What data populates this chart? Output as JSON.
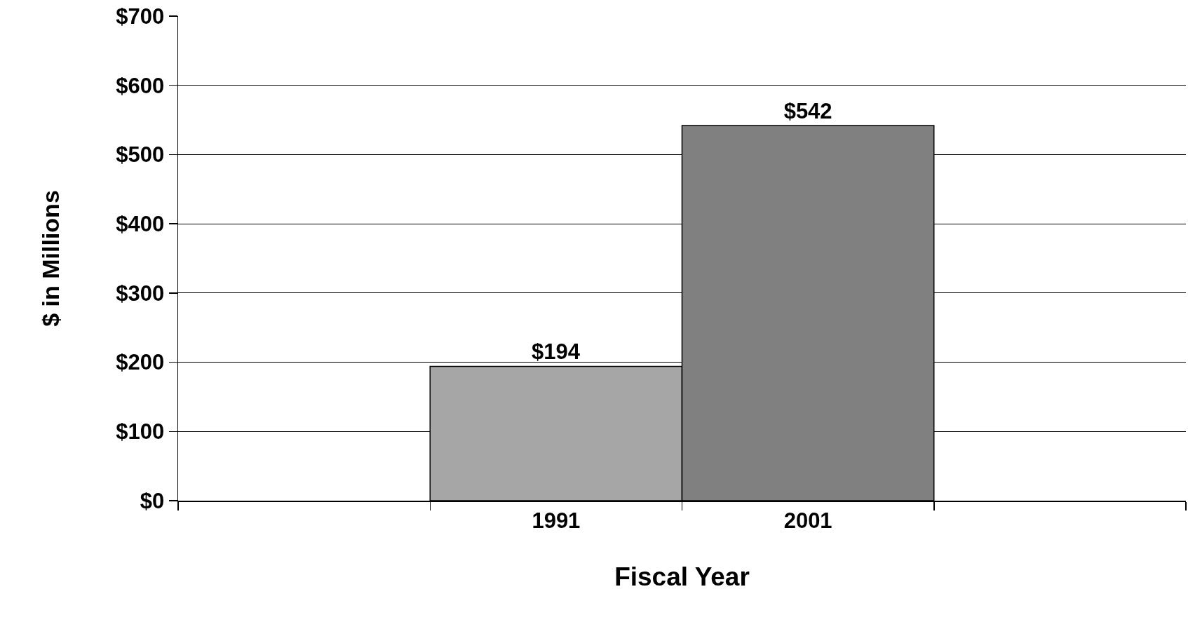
{
  "chart_data": {
    "type": "bar",
    "xlabel": "Fiscal Year",
    "ylabel": "$ in Millions",
    "categories": [
      null,
      "1991",
      "2001",
      null
    ],
    "values": [
      null,
      194,
      542,
      null
    ],
    "colors": [
      "#a6a6a6",
      "#a6a6a6",
      "#808080",
      "#808080"
    ],
    "value_labels": [
      null,
      "$194",
      "$542",
      null
    ],
    "ylim": [
      0,
      700
    ],
    "yticks": [
      {
        "value": 0,
        "label": "$0"
      },
      {
        "value": 100,
        "label": "$100"
      },
      {
        "value": 200,
        "label": "$200"
      },
      {
        "value": 300,
        "label": "$300"
      },
      {
        "value": 400,
        "label": "$400"
      },
      {
        "value": 500,
        "label": "$500"
      },
      {
        "value": 600,
        "label": "$600"
      },
      {
        "value": 700,
        "label": "$700"
      }
    ],
    "grid": "y",
    "legend": false
  }
}
